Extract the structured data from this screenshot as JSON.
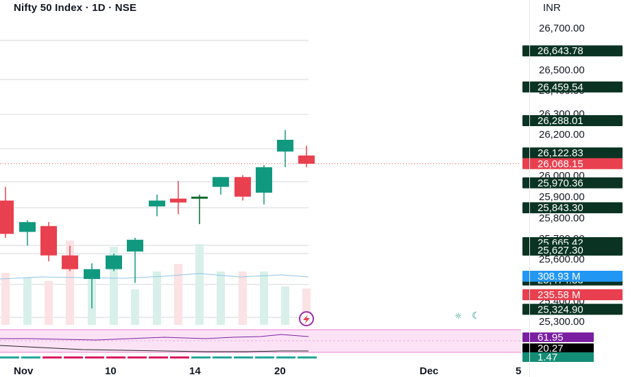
{
  "header": {
    "title": "Nifty 50 Index · 1D · NSE",
    "currency": "INR"
  },
  "colors": {
    "up": "#11997f",
    "up_strong": "#0b6b2f",
    "down": "#e8404f",
    "label_dark": "#0a3323",
    "price_label_red": "#e8404f",
    "volume_ma_label": "#2196f3",
    "rsi_label": "#7b1fa2",
    "rsi_band": "#fbe3f5",
    "black_label": "#000000",
    "teal_label": "#138d76"
  },
  "chart_data": {
    "type": "candlestick",
    "title": "Nifty 50 Index · 1D · NSE",
    "currency": "INR",
    "y_axis_ticks": [
      "26,700.00",
      "26,600.00",
      "26,500.00",
      "26,400.00",
      "26,300.00",
      "26,200.00",
      "26,100.00",
      "26,000.00",
      "25,900.00",
      "25,800.00",
      "25,700.00",
      "25,600.00",
      "25,400.00",
      "25,300.00"
    ],
    "x_axis_ticks": [
      "Nov",
      "10",
      "14",
      "20",
      "Dec",
      "5"
    ],
    "candles": [
      {
        "open": 25880,
        "high": 25950,
        "low": 25690,
        "close": 25710
      },
      {
        "open": 25720,
        "high": 25780,
        "low": 25650,
        "close": 25770
      },
      {
        "open": 25750,
        "high": 25770,
        "low": 25570,
        "close": 25600
      },
      {
        "open": 25600,
        "high": 25650,
        "low": 25520,
        "close": 25530
      },
      {
        "open": 25480,
        "high": 25560,
        "low": 25330,
        "close": 25530
      },
      {
        "open": 25530,
        "high": 25610,
        "low": 25520,
        "close": 25600
      },
      {
        "open": 25620,
        "high": 25690,
        "low": 25460,
        "close": 25680
      },
      {
        "open": 25850,
        "high": 25910,
        "low": 25800,
        "close": 25880
      },
      {
        "open": 25890,
        "high": 25980,
        "low": 25810,
        "close": 25870
      },
      {
        "open": 25890,
        "high": 25910,
        "low": 25760,
        "close": 25900
      },
      {
        "open": 25950,
        "high": 26000,
        "low": 25910,
        "close": 26000
      },
      {
        "open": 26000,
        "high": 26010,
        "low": 25880,
        "close": 25900
      },
      {
        "open": 25920,
        "high": 26060,
        "low": 25860,
        "close": 26050
      },
      {
        "open": 26130,
        "high": 26240,
        "low": 26050,
        "close": 26190
      },
      {
        "open": 26110,
        "high": 26160,
        "low": 26050,
        "close": 26068
      }
    ],
    "price_labels": [
      {
        "text": "26,643.78",
        "value": 26643.78,
        "color": "label_dark"
      },
      {
        "text": "26,459.54",
        "value": 26459.54,
        "color": "label_dark"
      },
      {
        "text": "26,288.01",
        "value": 26288.01,
        "color": "label_dark"
      },
      {
        "text": "26,122.83",
        "value": 26122.83,
        "color": "label_dark"
      },
      {
        "text": "26,068.15",
        "value": 26068.15,
        "color": "price_label_red"
      },
      {
        "text": "25,970.36",
        "value": 25970.36,
        "color": "label_dark"
      },
      {
        "text": "25,843.30",
        "value": 25843.3,
        "color": "label_dark"
      },
      {
        "text": "25,665.42",
        "value": 25665.42,
        "color": "label_dark"
      },
      {
        "text": "25,627.30",
        "value": 25627.3,
        "color": "label_dark"
      },
      {
        "text": "25,474.83",
        "value": 25474.83,
        "color": "label_dark"
      },
      {
        "text": "25,324.90",
        "value": 25324.9,
        "color": "label_dark"
      }
    ],
    "volume_labels": [
      {
        "text": "308.93 M",
        "color": "volume_ma_label"
      },
      {
        "text": "235.58 M",
        "color": "price_label_red"
      }
    ],
    "indicator_labels": [
      {
        "text": "61.95",
        "color": "rsi_label"
      },
      {
        "text": "20.27",
        "color": "black_label"
      },
      {
        "text": "1.47",
        "color": "teal_label"
      }
    ],
    "y_range": [
      25270,
      26760
    ],
    "grid": true
  }
}
